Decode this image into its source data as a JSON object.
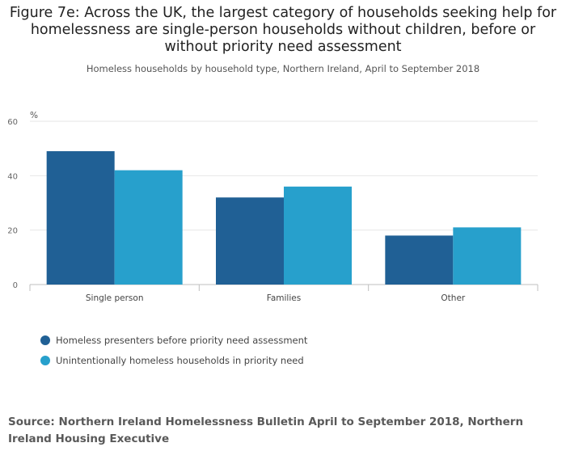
{
  "chart_data": {
    "type": "bar",
    "title": "Figure 7e: Across the UK, the largest category of households seeking help for homelessness are single-person households without children, before or without priority need assessment",
    "subtitle": "Homeless households by household type, Northern Ireland, April to September 2018",
    "ylabel": "%",
    "xlabel": "",
    "ylim": [
      0,
      60
    ],
    "yticks": [
      0,
      20,
      40,
      60
    ],
    "categories": [
      "Single person",
      "Families",
      "Other"
    ],
    "series": [
      {
        "name": "Homeless presenters before priority need assessment",
        "values": [
          49,
          32,
          18
        ],
        "color": "#206095"
      },
      {
        "name": "Unintentionally homeless households in priority need",
        "values": [
          42,
          36,
          21
        ],
        "color": "#27a0cc"
      }
    ],
    "grid": true,
    "legend_position": "bottom-left"
  },
  "source": "Source: Northern Ireland Homelessness Bulletin April to September 2018, Northern Ireland Housing Executive"
}
